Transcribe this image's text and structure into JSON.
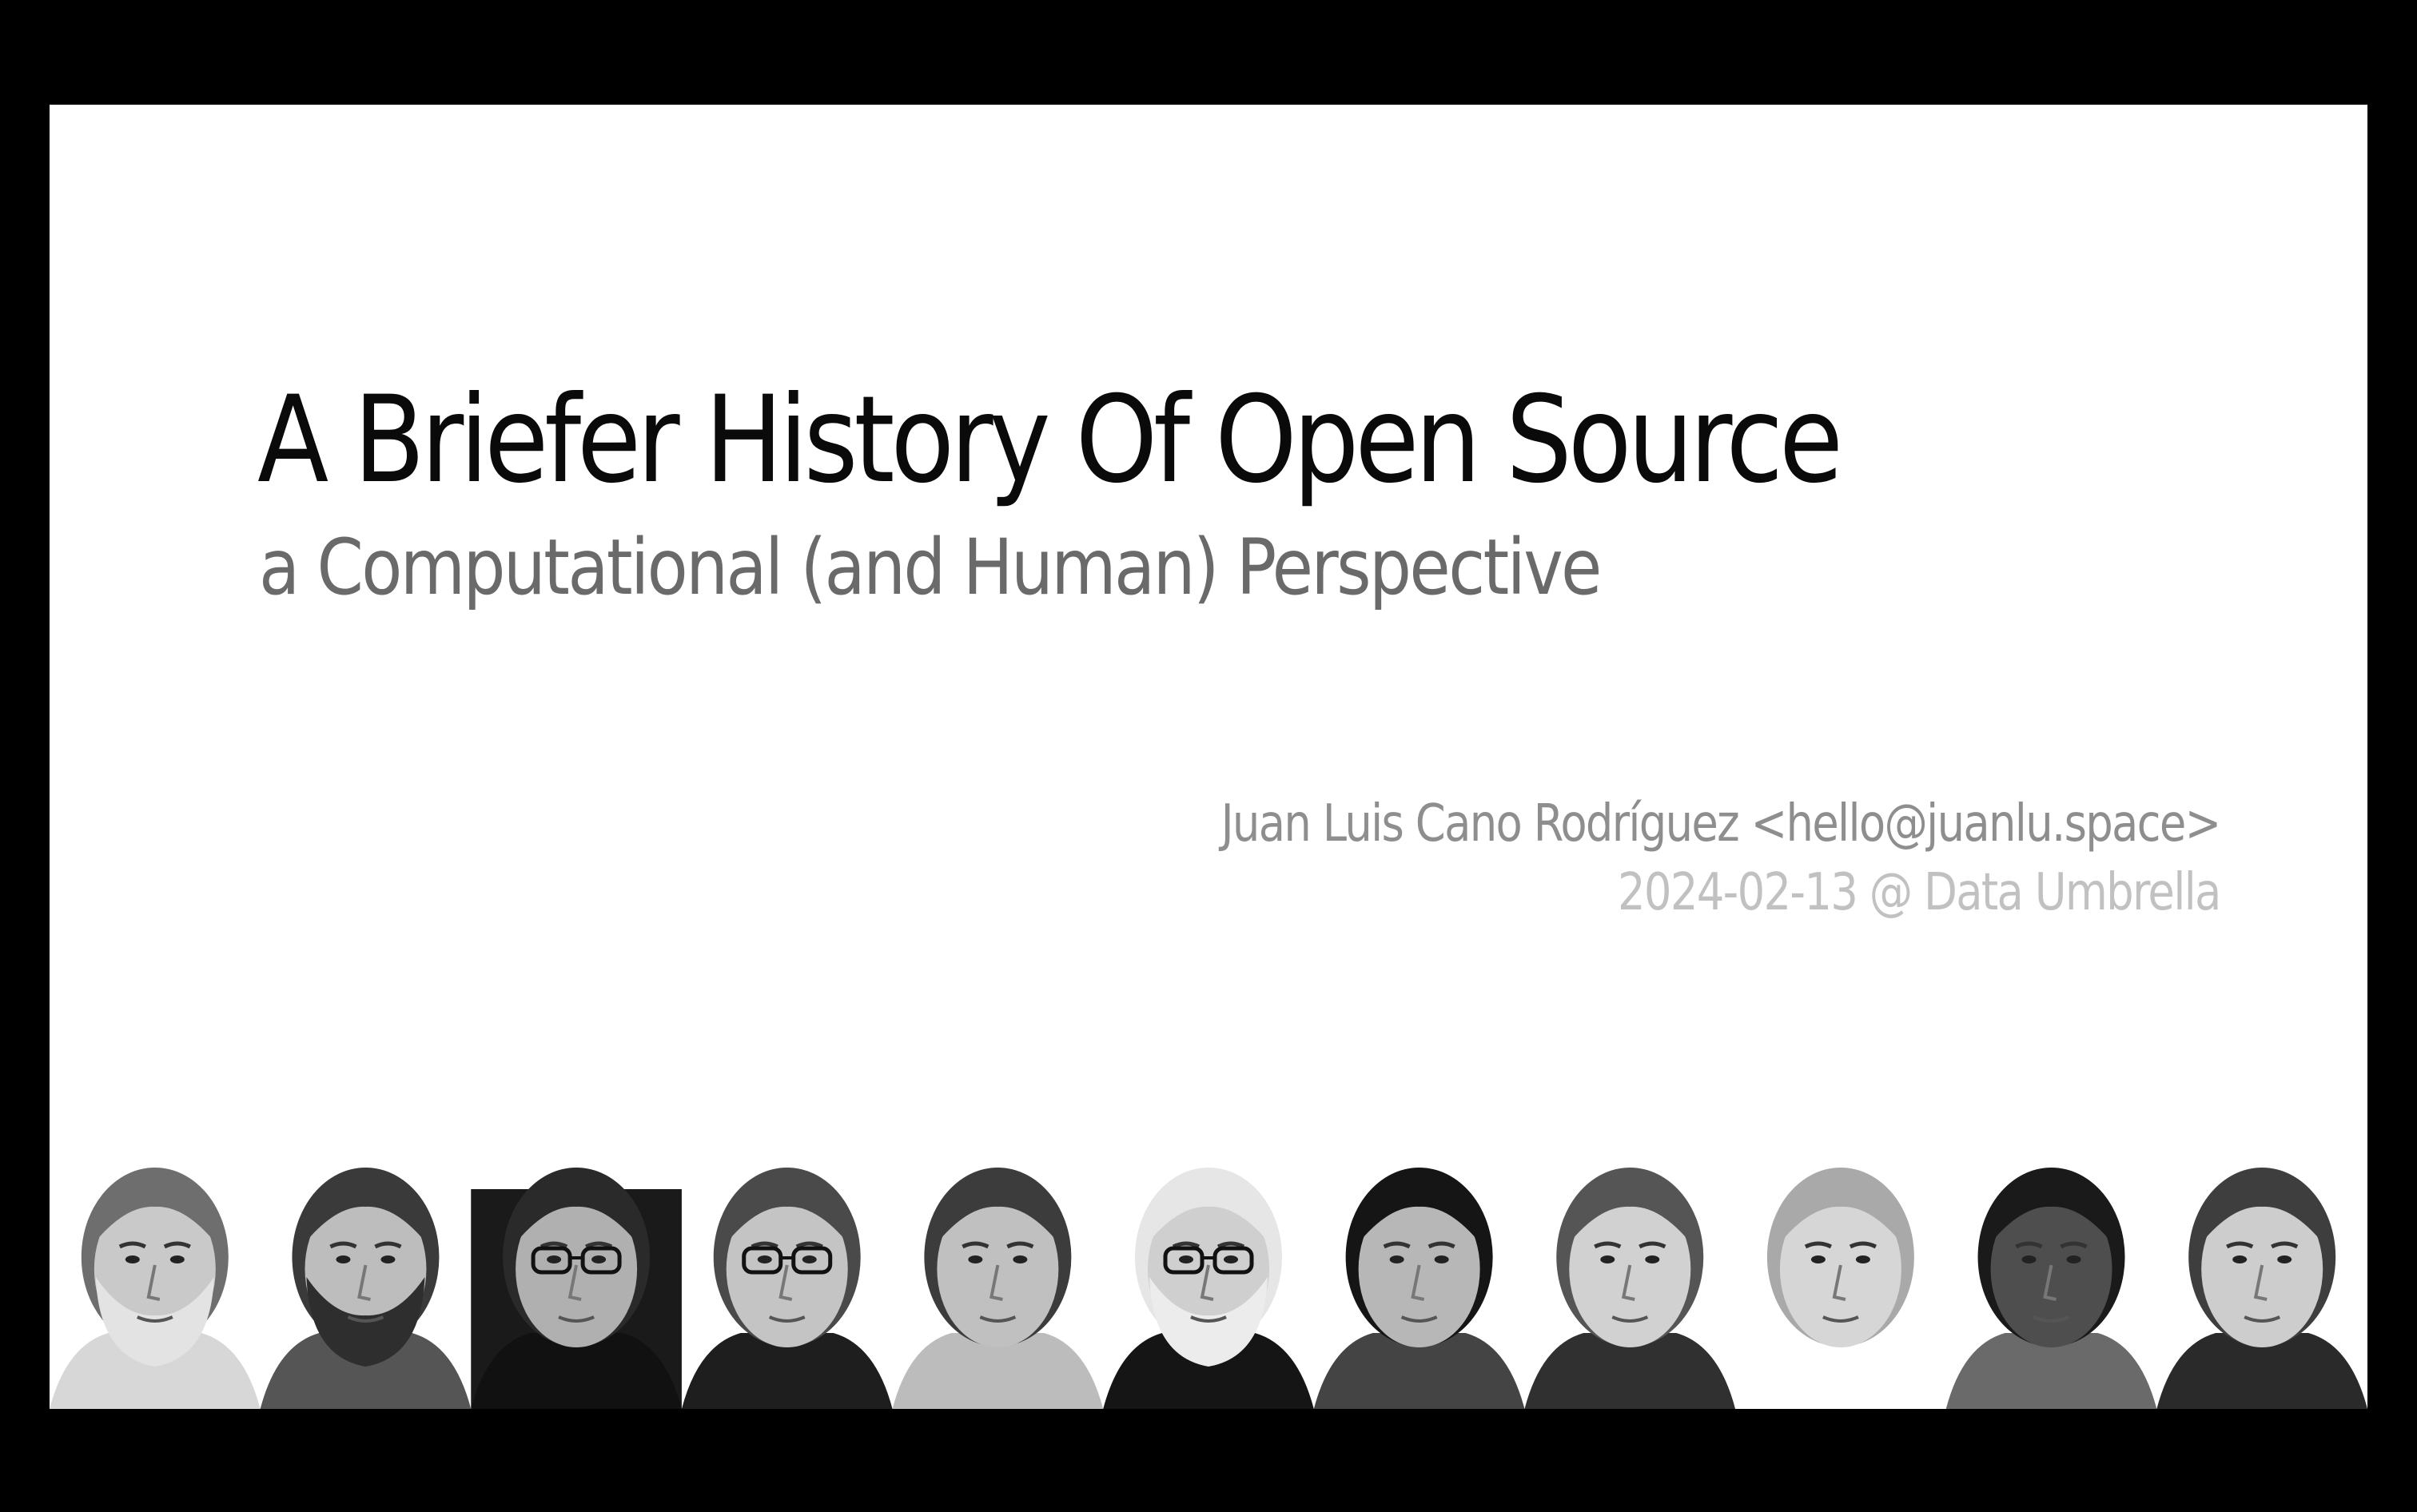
{
  "slide": {
    "title": "A Briefer History Of Open Source",
    "subtitle": "a Computational (and Human) Perspective",
    "author": "Juan Luis Cano Rodríguez <hello@juanlu.space>",
    "event": "2024-02-13 @ Data Umbrella"
  },
  "colors": {
    "background": "#000000",
    "slide": "#ffffff",
    "title": "#0a0a0a",
    "subtitle": "#6a6a6a",
    "author": "#8e8e8e",
    "event": "#c1c1c1"
  },
  "portraits": [
    {
      "name": "portrait-1",
      "hair": "#6e6e6e",
      "skin": "#c9c9c9",
      "beard": "#e3e3e3",
      "cloth": "#d7d7d7",
      "glasses": false,
      "dark_bg": false
    },
    {
      "name": "portrait-2",
      "hair": "#3a3a3a",
      "skin": "#bdbdbd",
      "beard": "#2e2e2e",
      "cloth": "#555555",
      "glasses": false,
      "dark_bg": false
    },
    {
      "name": "portrait-3",
      "hair": "#2a2a2a",
      "skin": "#b0b0b0",
      "beard": null,
      "cloth": "#111111",
      "glasses": true,
      "dark_bg": true
    },
    {
      "name": "portrait-4",
      "hair": "#4a4a4a",
      "skin": "#c4c4c4",
      "beard": null,
      "cloth": "#1e1e1e",
      "glasses": true,
      "dark_bg": false
    },
    {
      "name": "portrait-5",
      "hair": "#3c3c3c",
      "skin": "#c0c0c0",
      "beard": null,
      "cloth": "#bcbcbc",
      "glasses": false,
      "dark_bg": false
    },
    {
      "name": "portrait-6",
      "hair": "#e6e6e6",
      "skin": "#cfcfcf",
      "beard": "#ececec",
      "cloth": "#151515",
      "glasses": true,
      "dark_bg": false
    },
    {
      "name": "portrait-7",
      "hair": "#151515",
      "skin": "#b7b7b7",
      "beard": null,
      "cloth": "#444444",
      "glasses": false,
      "dark_bg": false
    },
    {
      "name": "portrait-8",
      "hair": "#555555",
      "skin": "#d1d1d1",
      "beard": null,
      "cloth": "#303030",
      "glasses": false,
      "dark_bg": false
    },
    {
      "name": "portrait-9",
      "hair": "#a9a9a9",
      "skin": "#d6d6d6",
      "beard": null,
      "cloth": "#ffffff",
      "glasses": false,
      "dark_bg": false
    },
    {
      "name": "portrait-10",
      "hair": "#1a1a1a",
      "skin": "#4e4e4e",
      "beard": null,
      "cloth": "#6a6a6a",
      "glasses": false,
      "dark_bg": false
    },
    {
      "name": "portrait-11",
      "hair": "#3e3e3e",
      "skin": "#cdcdcd",
      "beard": null,
      "cloth": "#2a2a2a",
      "glasses": false,
      "dark_bg": false
    }
  ]
}
